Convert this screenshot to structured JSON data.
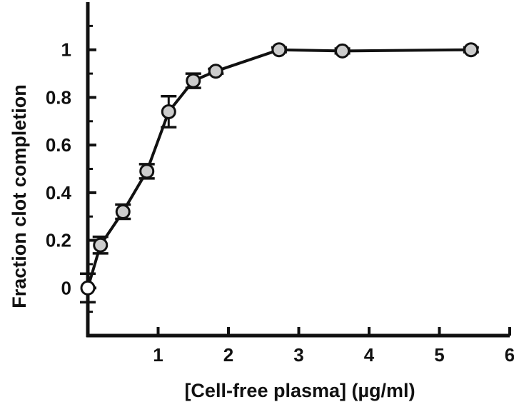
{
  "chart_data": {
    "type": "line",
    "xlabel": "[Cell-free plasma] (µg/ml)",
    "ylabel": "Fraction clot completion",
    "xlim": [
      0,
      6
    ],
    "ylim": [
      -0.2,
      1.2
    ],
    "x_ticks": [
      "1",
      "2",
      "3",
      "4",
      "5",
      "6"
    ],
    "y_ticks": [
      "0",
      "0.2",
      "0.4",
      "0.6",
      "0.8",
      "1"
    ],
    "grid": false,
    "marker_color": "#cccccc",
    "line_color": "#111111",
    "series": [
      {
        "x": [
          0.0,
          0.18,
          0.5,
          0.84,
          1.15,
          1.5,
          1.82,
          2.72,
          3.62,
          5.45
        ],
        "y": [
          0.0,
          0.18,
          0.32,
          0.49,
          0.74,
          0.87,
          0.91,
          1.0,
          0.995,
          1.0
        ],
        "error": [
          0.06,
          0.035,
          0.03,
          0.03,
          0.065,
          0.03,
          0.01,
          0.01,
          0.01,
          0.01
        ]
      }
    ]
  }
}
